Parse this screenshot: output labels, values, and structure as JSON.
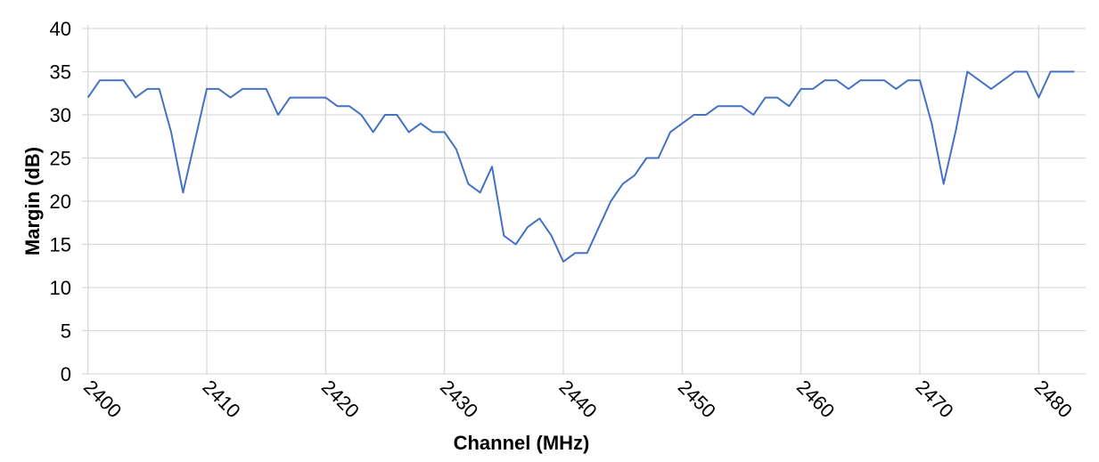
{
  "chart_data": {
    "type": "line",
    "x_label": "Channel (MHz)",
    "y_label": "Margin (dB)",
    "x": [
      2400,
      2401,
      2402,
      2403,
      2404,
      2405,
      2406,
      2407,
      2408,
      2409,
      2410,
      2411,
      2412,
      2413,
      2414,
      2415,
      2416,
      2417,
      2418,
      2419,
      2420,
      2421,
      2422,
      2423,
      2424,
      2425,
      2426,
      2427,
      2428,
      2429,
      2430,
      2431,
      2432,
      2433,
      2434,
      2435,
      2436,
      2437,
      2438,
      2439,
      2440,
      2441,
      2442,
      2443,
      2444,
      2445,
      2446,
      2447,
      2448,
      2449,
      2450,
      2451,
      2452,
      2453,
      2454,
      2455,
      2456,
      2457,
      2458,
      2459,
      2460,
      2461,
      2462,
      2463,
      2464,
      2465,
      2466,
      2467,
      2468,
      2469,
      2470,
      2471,
      2472,
      2473,
      2474,
      2475,
      2476,
      2477,
      2478,
      2479,
      2480,
      2481,
      2482,
      2483
    ],
    "series": [
      {
        "color": "#4472c4",
        "values": [
          32,
          34,
          34,
          34,
          32,
          33,
          33,
          28,
          21,
          27,
          33,
          33,
          32,
          33,
          33,
          33,
          30,
          32,
          32,
          32,
          32,
          31,
          31,
          30,
          28,
          30,
          30,
          28,
          29,
          28,
          28,
          26,
          22,
          21,
          24,
          16,
          15,
          17,
          18,
          16,
          13,
          14,
          14,
          17,
          20,
          22,
          23,
          25,
          25,
          28,
          29,
          30,
          30,
          31,
          31,
          31,
          30,
          32,
          32,
          31,
          33,
          33,
          34,
          34,
          33,
          34,
          34,
          34,
          33,
          34,
          34,
          29,
          22,
          28,
          35,
          34,
          33,
          34,
          35,
          35,
          32,
          35,
          35,
          35
        ]
      }
    ],
    "xlim": [
      2399.5,
      2483.5
    ],
    "xticks": [
      2400,
      2410,
      2420,
      2430,
      2440,
      2450,
      2460,
      2470,
      2480
    ],
    "ylim": [
      0,
      40
    ],
    "yticks": [
      0,
      5,
      10,
      15,
      20,
      25,
      30,
      35,
      40
    ],
    "grid": true
  }
}
